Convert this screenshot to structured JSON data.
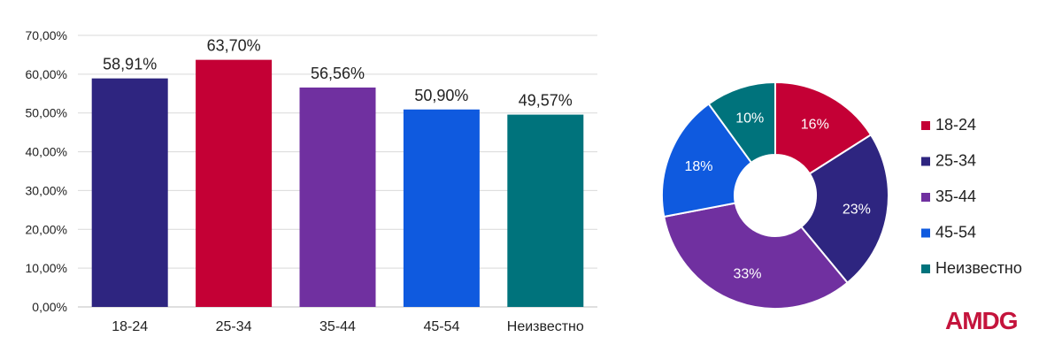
{
  "logo": {
    "text": "AMDG",
    "color": "#c4143c"
  },
  "chart_data": [
    {
      "type": "bar",
      "categories": [
        "18-24",
        "25-34",
        "35-44",
        "45-54",
        "Неизвестно"
      ],
      "values": [
        58.91,
        63.7,
        56.56,
        50.9,
        49.57
      ],
      "value_labels": [
        "58,91%",
        "63,70%",
        "56,56%",
        "50,90%",
        "49,57%"
      ],
      "colors": [
        "#2e2580",
        "#c40035",
        "#7030a0",
        "#0f5adf",
        "#00737c"
      ],
      "ylim": [
        0,
        70
      ],
      "yticks": [
        0,
        10,
        20,
        30,
        40,
        50,
        60,
        70
      ],
      "ytick_labels": [
        "0,00%",
        "10,00%",
        "20,00%",
        "30,00%",
        "40,00%",
        "50,00%",
        "60,00%",
        "70,00%"
      ],
      "grid": true,
      "title": "",
      "xlabel": "",
      "ylabel": ""
    },
    {
      "type": "pie",
      "donut": true,
      "categories": [
        "18-24",
        "25-34",
        "35-44",
        "45-54",
        "Неизвестно"
      ],
      "values": [
        16,
        23,
        33,
        18,
        10
      ],
      "value_labels": [
        "16%",
        "23%",
        "33%",
        "18%",
        "10%"
      ],
      "colors": [
        "#c40035",
        "#2e2580",
        "#7030a0",
        "#0f5adf",
        "#00737c"
      ],
      "legend": "right",
      "title": ""
    }
  ]
}
